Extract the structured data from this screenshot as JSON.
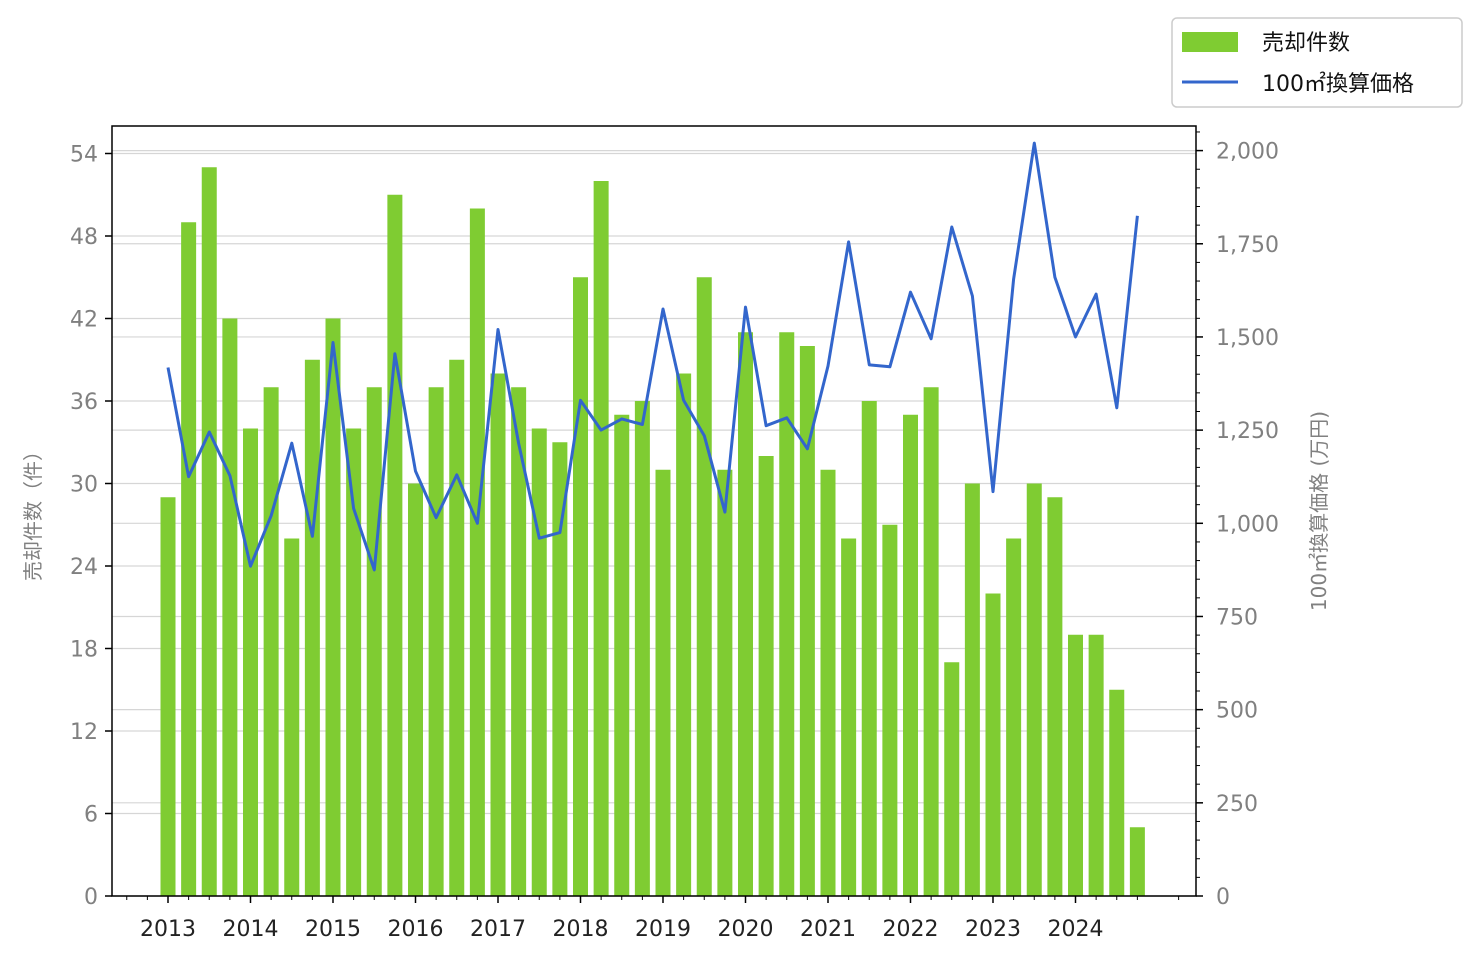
{
  "chart_data": {
    "type": "bar+line",
    "x_tick_labels": [
      "2013",
      "2014",
      "2015",
      "2016",
      "2017",
      "2018",
      "2019",
      "2020",
      "2021",
      "2022",
      "2023",
      "2024"
    ],
    "x_start_year": 2013,
    "x_step": 0.25,
    "series": [
      {
        "name": "売却件数",
        "kind": "bar",
        "axis": "left",
        "color": "#7fcc32",
        "values": [
          29,
          49,
          53,
          42,
          34,
          37,
          26,
          39,
          42,
          34,
          37,
          51,
          30,
          37,
          39,
          50,
          38,
          37,
          34,
          33,
          45,
          52,
          35,
          36,
          31,
          38,
          45,
          31,
          41,
          32,
          41,
          40,
          31,
          26,
          36,
          27,
          35,
          37,
          17,
          30,
          22,
          26,
          30,
          29,
          19,
          19,
          15,
          5
        ]
      },
      {
        "name": "100㎡換算価格",
        "kind": "line",
        "axis": "right",
        "color": "#3366cc",
        "values": [
          1418,
          1125,
          1245,
          1128,
          885,
          1020,
          1215,
          965,
          1485,
          1040,
          875,
          1455,
          1140,
          1015,
          1130,
          1000,
          1520,
          1215,
          960,
          975,
          1330,
          1250,
          1280,
          1265,
          1575,
          1330,
          1235,
          1030,
          1580,
          1262,
          1283,
          1200,
          1422,
          1755,
          1425,
          1420,
          1620,
          1495,
          1795,
          1610,
          1085,
          1655,
          2020,
          1660,
          1500,
          1615,
          1310,
          1825
        ]
      }
    ],
    "y_left": {
      "label": "売却件数（件）",
      "min": 0,
      "max": 56,
      "ticks": [
        0,
        6,
        12,
        18,
        24,
        30,
        36,
        42,
        48,
        54
      ]
    },
    "y_right": {
      "label": "100㎡換算価格 (万円)",
      "min": 0,
      "max": 2066,
      "ticks": [
        0,
        250,
        500,
        750,
        1000,
        1250,
        1500,
        1750,
        2000
      ],
      "tick_labels": [
        "0",
        "250",
        "500",
        "750",
        "1,000",
        "1,250",
        "1,500",
        "1,750",
        "2,000"
      ]
    },
    "grid": "horizontal",
    "legend_position": "top-right"
  }
}
